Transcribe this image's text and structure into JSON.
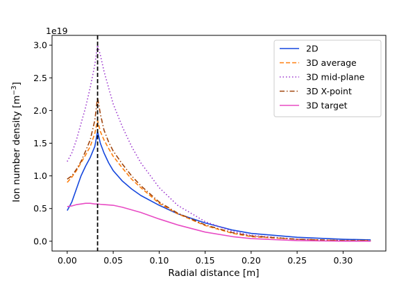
{
  "chart_data": {
    "type": "line",
    "xlabel": "Radial distance [m]",
    "ylabel": "Ion number density [m",
    "ylabel_sup": "−3",
    "ylabel_end": "]",
    "y_offset_label": "1e19",
    "xlim": [
      -0.0165,
      0.3465
    ],
    "ylim": [
      -0.15,
      3.15
    ],
    "x_ticks": [
      0.0,
      0.05,
      0.1,
      0.15,
      0.2,
      0.25,
      0.3
    ],
    "x_tick_labels": [
      "0.00",
      "0.05",
      "0.10",
      "0.15",
      "0.20",
      "0.25",
      "0.30"
    ],
    "y_ticks": [
      0.0,
      0.5,
      1.0,
      1.5,
      2.0,
      2.5,
      3.0
    ],
    "y_tick_labels": [
      "0.0",
      "0.5",
      "1.0",
      "1.5",
      "2.0",
      "2.5",
      "3.0"
    ],
    "vline_x": 0.033,
    "vline_color": "#000000",
    "legend_position": "top-right",
    "series": [
      {
        "name": "2D",
        "color": "#1547dd",
        "dash": "solid",
        "x": [
          0.0,
          0.005,
          0.01,
          0.015,
          0.02,
          0.025,
          0.03,
          0.033,
          0.036,
          0.04,
          0.045,
          0.05,
          0.06,
          0.07,
          0.08,
          0.1,
          0.12,
          0.15,
          0.18,
          0.2,
          0.25,
          0.3,
          0.33
        ],
        "y": [
          0.47,
          0.6,
          0.8,
          1.0,
          1.15,
          1.28,
          1.45,
          1.68,
          1.5,
          1.35,
          1.2,
          1.08,
          0.92,
          0.8,
          0.7,
          0.55,
          0.42,
          0.28,
          0.17,
          0.12,
          0.06,
          0.03,
          0.02
        ]
      },
      {
        "name": "3D average",
        "color": "#ff7f0e",
        "dash": "dashed",
        "x": [
          0.0,
          0.005,
          0.01,
          0.015,
          0.02,
          0.025,
          0.03,
          0.033,
          0.036,
          0.04,
          0.045,
          0.05,
          0.06,
          0.07,
          0.08,
          0.1,
          0.12,
          0.15,
          0.18,
          0.2,
          0.25,
          0.3,
          0.33
        ],
        "y": [
          0.9,
          0.98,
          1.08,
          1.2,
          1.32,
          1.45,
          1.65,
          1.85,
          1.68,
          1.55,
          1.42,
          1.3,
          1.12,
          0.95,
          0.82,
          0.58,
          0.42,
          0.24,
          0.12,
          0.07,
          0.03,
          0.01,
          0.01
        ]
      },
      {
        "name": "3D mid-plane",
        "color": "#9a32cd",
        "dash": "dotted",
        "x": [
          0.0,
          0.005,
          0.01,
          0.015,
          0.02,
          0.025,
          0.03,
          0.033,
          0.036,
          0.04,
          0.045,
          0.05,
          0.06,
          0.07,
          0.08,
          0.1,
          0.12,
          0.15,
          0.18,
          0.2,
          0.25,
          0.3,
          0.33
        ],
        "y": [
          1.22,
          1.35,
          1.55,
          1.8,
          2.05,
          2.35,
          2.7,
          3.0,
          2.85,
          2.6,
          2.35,
          2.1,
          1.75,
          1.45,
          1.2,
          0.82,
          0.55,
          0.3,
          0.15,
          0.09,
          0.03,
          0.01,
          0.0
        ]
      },
      {
        "name": "3D X-point",
        "color": "#a0430a",
        "dash": "dashdot",
        "x": [
          0.0,
          0.005,
          0.01,
          0.015,
          0.02,
          0.025,
          0.03,
          0.033,
          0.036,
          0.04,
          0.045,
          0.05,
          0.06,
          0.07,
          0.08,
          0.1,
          0.12,
          0.15,
          0.18,
          0.2,
          0.25,
          0.3,
          0.33
        ],
        "y": [
          0.95,
          1.0,
          1.1,
          1.22,
          1.38,
          1.55,
          1.85,
          2.2,
          1.95,
          1.7,
          1.52,
          1.38,
          1.18,
          1.0,
          0.85,
          0.6,
          0.43,
          0.25,
          0.13,
          0.08,
          0.03,
          0.01,
          0.01
        ]
      },
      {
        "name": "3D target",
        "color": "#e84bc4",
        "dash": "solid",
        "x": [
          0.0,
          0.005,
          0.01,
          0.015,
          0.02,
          0.025,
          0.03,
          0.033,
          0.036,
          0.04,
          0.045,
          0.05,
          0.06,
          0.07,
          0.08,
          0.1,
          0.12,
          0.15,
          0.18,
          0.2,
          0.25,
          0.3,
          0.33
        ],
        "y": [
          0.53,
          0.54,
          0.56,
          0.57,
          0.58,
          0.58,
          0.57,
          0.57,
          0.565,
          0.56,
          0.555,
          0.55,
          0.52,
          0.48,
          0.44,
          0.34,
          0.25,
          0.14,
          0.07,
          0.04,
          0.01,
          0.0,
          0.0
        ]
      }
    ]
  }
}
